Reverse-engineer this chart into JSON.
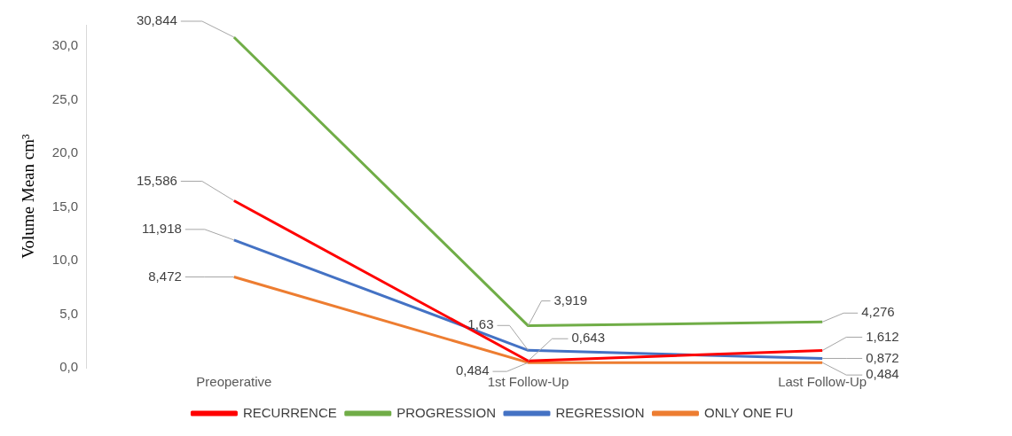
{
  "chart_data": {
    "type": "line",
    "ylabel": "Volume Mean cm³",
    "categories": [
      "Preoperative",
      "1st Follow-Up",
      "Last Follow-Up"
    ],
    "series": [
      {
        "name": "RECURRENCE",
        "color": "#ff0000",
        "values": [
          15.586,
          0.643,
          1.612
        ],
        "value_labels": [
          "15,586",
          "0,643",
          "1,612"
        ]
      },
      {
        "name": "PROGRESSION",
        "color": "#70ad47",
        "values": [
          30.844,
          3.919,
          4.276
        ],
        "value_labels": [
          "30,844",
          "3,919",
          "4,276"
        ]
      },
      {
        "name": "REGRESSION",
        "color": "#4472c4",
        "values": [
          11.918,
          1.63,
          0.872
        ],
        "value_labels": [
          "11,918",
          "1,63",
          "0,872"
        ]
      },
      {
        "name": "ONLY ONE FU",
        "color": "#ed7d31",
        "values": [
          8.472,
          0.484,
          0.484
        ],
        "value_labels": [
          "8,472",
          "0,484",
          "0,484"
        ]
      }
    ],
    "ylim": [
      0,
      32
    ],
    "yticks": [
      {
        "value": 0,
        "label": "0,0"
      },
      {
        "value": 5,
        "label": "5,0"
      },
      {
        "value": 10,
        "label": "10,0"
      },
      {
        "value": 15,
        "label": "15,0"
      },
      {
        "value": 20,
        "label": "20,0"
      },
      {
        "value": 25,
        "label": "25,0"
      },
      {
        "value": 30,
        "label": "30,0"
      }
    ],
    "grid": false,
    "legend": "bottom",
    "marker": "none",
    "line_style": "solid"
  }
}
